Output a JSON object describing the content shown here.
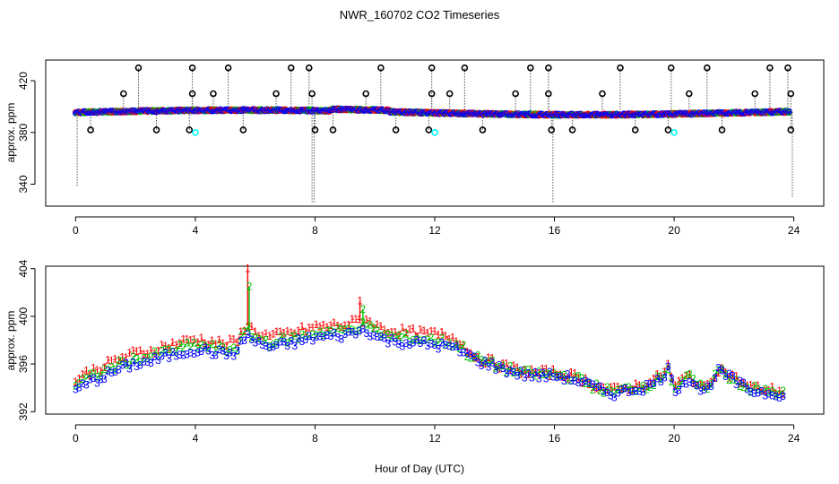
{
  "chart_data": [
    {
      "type": "scatter",
      "title": "NWR_160702  CO2 Timeseries",
      "ylabel": "approx. ppm",
      "xlabel": "",
      "xlim": [
        -1,
        25
      ],
      "ylim": [
        323,
        436
      ],
      "x_ticks": [
        0,
        4,
        8,
        12,
        16,
        20,
        24
      ],
      "y_ticks": [
        340,
        380,
        420
      ],
      "x_tick_labels": [
        "0",
        "4",
        "8",
        "12",
        "16",
        "20",
        "24"
      ],
      "y_tick_labels": [
        "340",
        "380",
        "420"
      ],
      "baseline": 395.5,
      "series_colors": [
        "#ff0000",
        "#00c000",
        "#0000ff",
        "#000000",
        "#00ffff"
      ],
      "high_spikes_x": [
        2.1,
        3.9,
        5.1,
        7.2,
        7.8,
        10.2,
        11.9,
        13.0,
        15.2,
        15.8,
        18.2,
        19.9,
        21.1,
        23.2,
        23.8
      ],
      "high_spike_value": 430,
      "mid_spikes_x": [
        1.6,
        3.9,
        4.6,
        6.7,
        7.9,
        9.7,
        11.9,
        12.5,
        14.7,
        15.8,
        17.6,
        20.5,
        22.7,
        23.9
      ],
      "mid_spike_value": 410,
      "low_spikes_x": [
        0.5,
        2.7,
        3.8,
        5.6,
        8.0,
        8.6,
        10.7,
        11.8,
        13.6,
        15.9,
        16.6,
        18.7,
        19.8,
        21.6,
        23.9
      ],
      "low_spike_value": 382,
      "drops": [
        {
          "x": 0.05,
          "to": 338
        },
        {
          "x": 7.9,
          "to": 326
        },
        {
          "x": 7.97,
          "to": 326
        },
        {
          "x": 15.95,
          "to": 326
        },
        {
          "x": 23.95,
          "to": 330
        }
      ],
      "cyan_points": [
        {
          "x": 4.0,
          "y": 380
        },
        {
          "x": 12.0,
          "y": 380
        },
        {
          "x": 20.0,
          "y": 380
        }
      ]
    },
    {
      "type": "line",
      "title": "",
      "ylabel": "approx. ppm",
      "xlabel": "Hour of Day (UTC)",
      "xlim": [
        -1,
        25
      ],
      "ylim": [
        391.8,
        404.2
      ],
      "x_ticks": [
        0,
        4,
        8,
        12,
        16,
        20,
        24
      ],
      "y_ticks": [
        392,
        396,
        400,
        404
      ],
      "x_tick_labels": [
        "0",
        "4",
        "8",
        "12",
        "16",
        "20",
        "24"
      ],
      "y_tick_labels": [
        "392",
        "396",
        "400",
        "404"
      ],
      "series": [
        {
          "name": "1",
          "color": "#ff0000",
          "offset": 0.9
        },
        {
          "name": "2",
          "color": "#00c000",
          "offset": 0.4
        },
        {
          "name": "3",
          "color": "#0000ff",
          "offset": 0.0
        }
      ],
      "profile": [
        [
          0.0,
          393.8
        ],
        [
          0.5,
          394.5
        ],
        [
          1.0,
          395.0
        ],
        [
          1.5,
          395.6
        ],
        [
          2.0,
          396.0
        ],
        [
          2.5,
          396.2
        ],
        [
          3.0,
          396.6
        ],
        [
          3.5,
          396.9
        ],
        [
          4.0,
          397.2
        ],
        [
          4.5,
          397.0
        ],
        [
          5.0,
          396.8
        ],
        [
          5.4,
          397.0
        ],
        [
          5.7,
          398.5
        ],
        [
          6.0,
          397.8
        ],
        [
          6.5,
          397.4
        ],
        [
          7.0,
          397.6
        ],
        [
          7.5,
          397.9
        ],
        [
          8.0,
          398.2
        ],
        [
          8.5,
          398.3
        ],
        [
          9.0,
          398.4
        ],
        [
          9.3,
          398.6
        ],
        [
          9.7,
          398.9
        ],
        [
          10.0,
          398.3
        ],
        [
          10.5,
          397.9
        ],
        [
          11.0,
          397.8
        ],
        [
          11.5,
          397.7
        ],
        [
          12.0,
          397.6
        ],
        [
          12.5,
          397.4
        ],
        [
          13.0,
          396.9
        ],
        [
          13.5,
          396.2
        ],
        [
          14.0,
          395.8
        ],
        [
          14.5,
          395.4
        ],
        [
          15.0,
          395.1
        ],
        [
          15.5,
          395.0
        ],
        [
          16.0,
          395.0
        ],
        [
          16.5,
          394.8
        ],
        [
          17.0,
          394.4
        ],
        [
          17.5,
          393.8
        ],
        [
          18.0,
          393.5
        ],
        [
          18.5,
          393.8
        ],
        [
          19.0,
          394.0
        ],
        [
          19.5,
          394.6
        ],
        [
          19.8,
          395.6
        ],
        [
          20.0,
          393.8
        ],
        [
          20.5,
          394.8
        ],
        [
          21.0,
          393.6
        ],
        [
          21.5,
          395.4
        ],
        [
          22.0,
          394.6
        ],
        [
          22.5,
          393.8
        ],
        [
          23.0,
          393.6
        ],
        [
          23.5,
          393.5
        ],
        [
          23.7,
          393.3
        ]
      ],
      "peaks": [
        {
          "series": "1",
          "x": 5.75,
          "y": 404.0
        },
        {
          "series": "2",
          "x": 5.8,
          "y": 402.5
        },
        {
          "series": "1",
          "x": 9.5,
          "y": 401.3
        },
        {
          "series": "2",
          "x": 9.6,
          "y": 400.6
        }
      ]
    }
  ]
}
